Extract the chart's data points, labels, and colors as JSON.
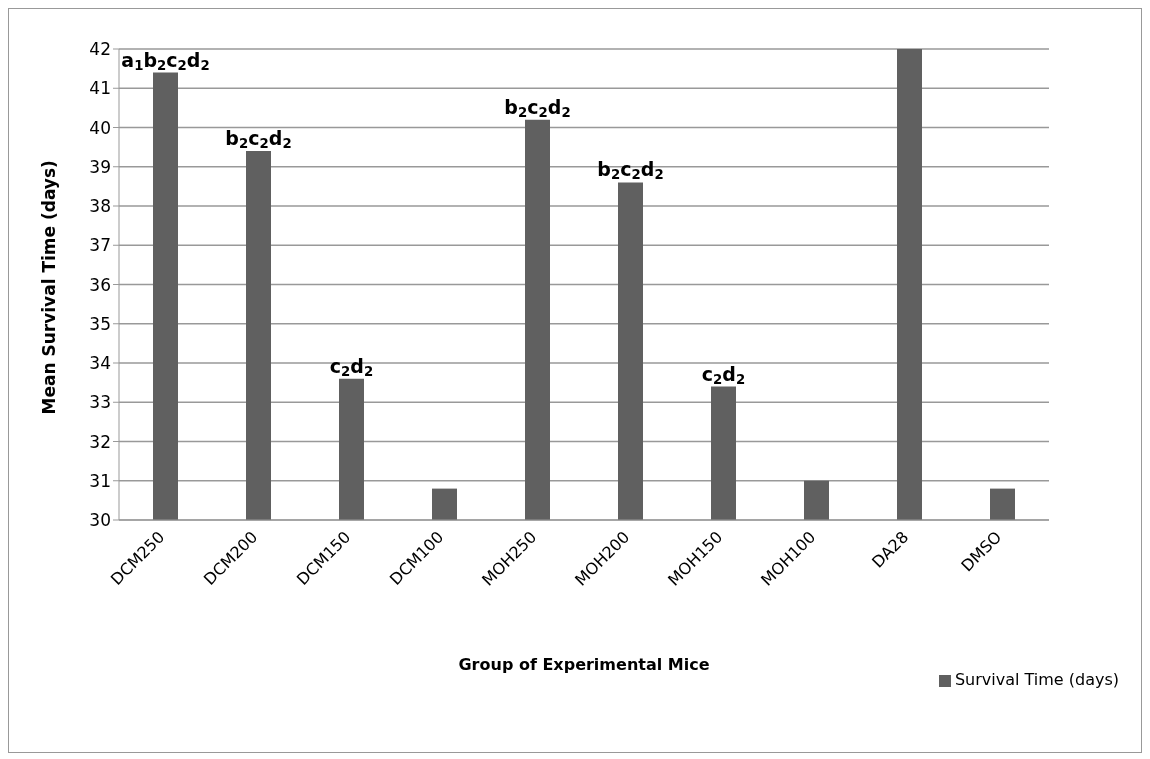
{
  "chart_data": {
    "type": "bar",
    "xlabel": "Group of Experimental Mice",
    "ylabel": "Mean Survival Time (days)",
    "categories": [
      "DCM250",
      "DCM200",
      "DCM150",
      "DCM100",
      "MOH250",
      "MOH200",
      "MOH150",
      "MOH100",
      "DA28",
      "DMSO"
    ],
    "series": [
      {
        "name": "Survival Time (days)",
        "color": "#606060",
        "values": [
          41.4,
          39.4,
          33.6,
          30.8,
          40.2,
          38.6,
          33.4,
          31,
          42,
          30.8
        ],
        "value_labels": [
          "a$_{1}$b$_{2}$c$_{2}$d$_{2}$",
          "b$_{2}$c$_{2}$d$_{2}$",
          "c$_{2}$d$_{2}$",
          null,
          "b$_{2}$c$_{2}$d$_{2}$",
          "b$_{2}$c$_{2}$d$_{2}$",
          "c$_{2}$d$_{2}$",
          null,
          null,
          null
        ]
      }
    ],
    "ylim": [
      30,
      42
    ],
    "yticks": [
      30,
      31,
      32,
      33,
      34,
      35,
      36,
      37,
      38,
      39,
      40,
      41,
      42
    ],
    "grid": "y",
    "legend": "bottom right"
  }
}
